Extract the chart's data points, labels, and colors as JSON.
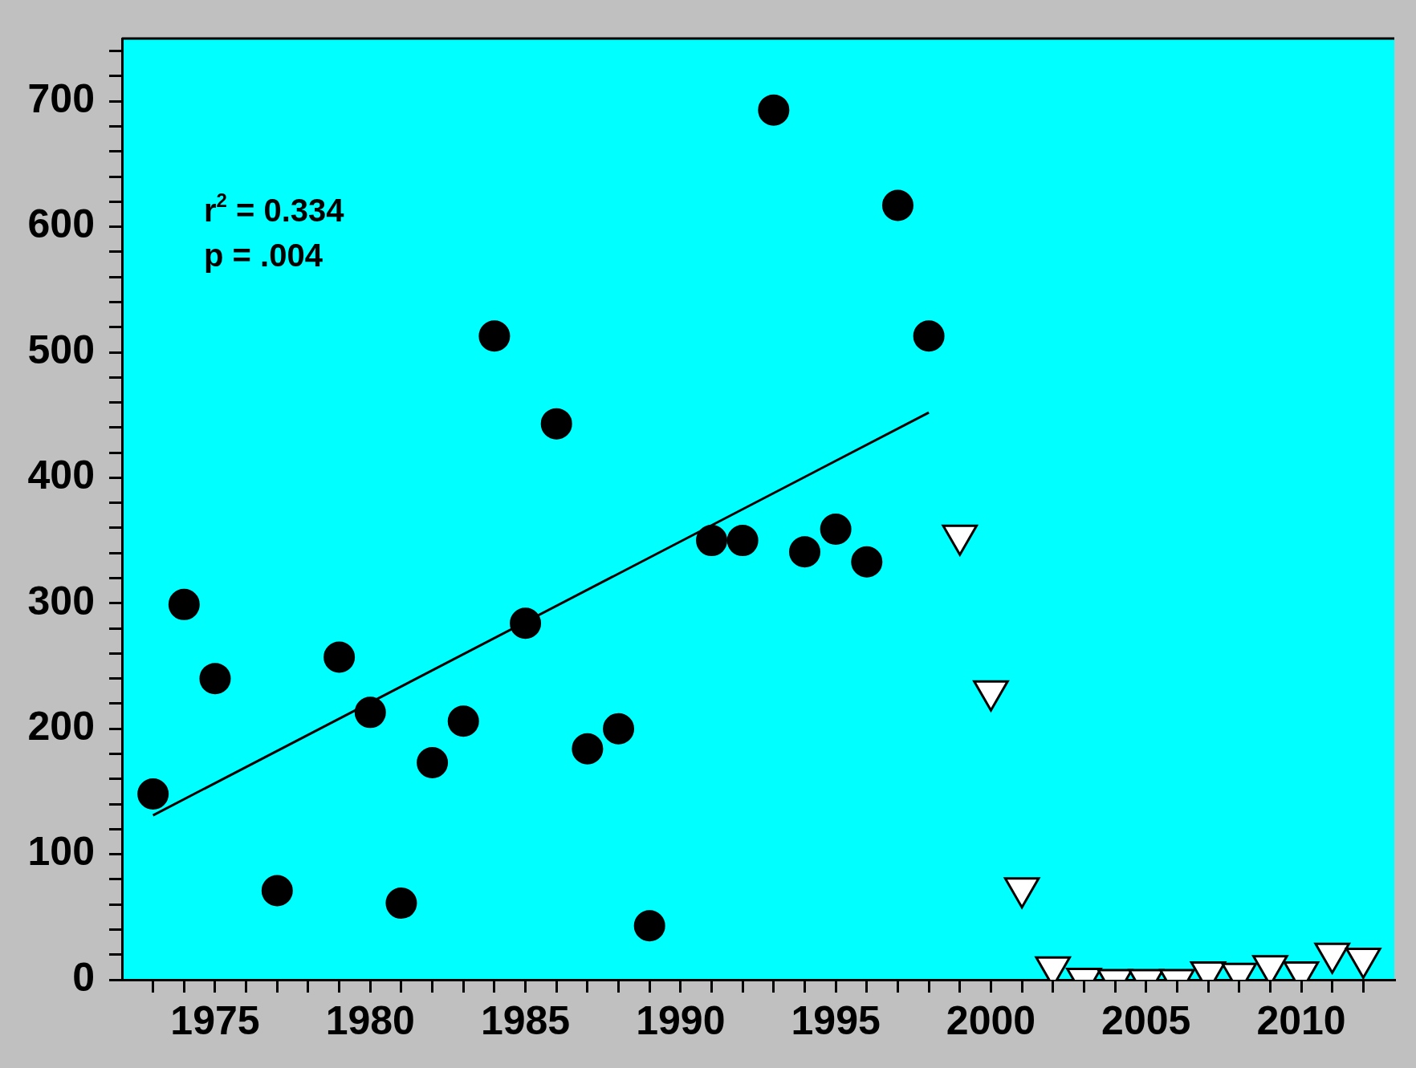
{
  "chart_data": {
    "type": "scatter",
    "annotations": [
      "r$^{2}$ = 0.334",
      "p = .004"
    ],
    "series": [
      {
        "color": "#000000",
        "marker": "circle",
        "x": [
          1973,
          1974,
          1975,
          1977,
          1979,
          1980,
          1981,
          1982,
          1983,
          1984,
          1985,
          1986,
          1987,
          1988,
          1989,
          1991,
          1992,
          1993,
          1994,
          1995,
          1996,
          1997,
          1998
        ],
        "values": [
          148,
          299,
          240,
          71,
          257,
          213,
          61,
          173,
          206,
          513,
          284,
          443,
          184,
          200,
          43,
          350,
          350,
          693,
          341,
          359,
          333,
          617,
          513
        ]
      },
      {
        "color": "#ffffff",
        "marker": "triangle",
        "x": [
          1999,
          2000,
          2001,
          2002,
          2003,
          2004,
          2005,
          2006,
          2007,
          2008,
          2009,
          2010,
          2011,
          2012
        ],
        "values": [
          354,
          230,
          73,
          10,
          1,
          0,
          0,
          0,
          6,
          5,
          11,
          6,
          21,
          17
        ]
      },
      {
        "type": "line",
        "color": "#000000",
        "marker": "none",
        "x": [
          1973,
          1998
        ],
        "values": [
          131,
          452
        ]
      }
    ],
    "xlim": [
      1972,
      2013
    ],
    "xticks": [
      {
        "value": 1973,
        "label": null
      },
      {
        "value": 1974,
        "label": null
      },
      1975,
      {
        "value": 1976,
        "label": null
      },
      {
        "value": 1977,
        "label": null
      },
      {
        "value": 1978,
        "label": null
      },
      {
        "value": 1979,
        "label": null
      },
      1980,
      {
        "value": 1981,
        "label": null
      },
      {
        "value": 1982,
        "label": null
      },
      {
        "value": 1983,
        "label": null
      },
      {
        "value": 1984,
        "label": null
      },
      1985,
      {
        "value": 1986,
        "label": null
      },
      {
        "value": 1987,
        "label": null
      },
      {
        "value": 1988,
        "label": null
      },
      {
        "value": 1989,
        "label": null
      },
      1990,
      {
        "value": 1991,
        "label": null
      },
      {
        "value": 1992,
        "label": null
      },
      {
        "value": 1993,
        "label": null
      },
      {
        "value": 1994,
        "label": null
      },
      1995,
      {
        "value": 1996,
        "label": null
      },
      {
        "value": 1997,
        "label": null
      },
      {
        "value": 1998,
        "label": null
      },
      {
        "value": 1999,
        "label": null
      },
      2000,
      {
        "value": 2001,
        "label": null
      },
      {
        "value": 2002,
        "label": null
      },
      {
        "value": 2003,
        "label": null
      },
      {
        "value": 2004,
        "label": null
      },
      2005,
      {
        "value": 2006,
        "label": null
      },
      {
        "value": 2007,
        "label": null
      },
      {
        "value": 2008,
        "label": null
      },
      {
        "value": 2009,
        "label": null
      },
      2010,
      {
        "value": 2011,
        "label": null
      },
      {
        "value": 2012,
        "label": null
      }
    ],
    "ylim": [
      0,
      750
    ],
    "yticks": [
      0,
      {
        "value": 20,
        "label": null
      },
      {
        "value": 40,
        "label": null
      },
      {
        "value": 60,
        "label": null
      },
      {
        "value": 80,
        "label": null
      },
      100,
      {
        "value": 120,
        "label": null
      },
      {
        "value": 140,
        "label": null
      },
      {
        "value": 160,
        "label": null
      },
      {
        "value": 180,
        "label": null
      },
      200,
      {
        "value": 220,
        "label": null
      },
      {
        "value": 240,
        "label": null
      },
      {
        "value": 260,
        "label": null
      },
      {
        "value": 280,
        "label": null
      },
      300,
      {
        "value": 320,
        "label": null
      },
      {
        "value": 340,
        "label": null
      },
      {
        "value": 360,
        "label": null
      },
      {
        "value": 380,
        "label": null
      },
      400,
      {
        "value": 420,
        "label": null
      },
      {
        "value": 440,
        "label": null
      },
      {
        "value": 460,
        "label": null
      },
      {
        "value": 480,
        "label": null
      },
      500,
      {
        "value": 520,
        "label": null
      },
      {
        "value": 540,
        "label": null
      },
      {
        "value": 560,
        "label": null
      },
      {
        "value": 580,
        "label": null
      },
      600,
      {
        "value": 620,
        "label": null
      },
      {
        "value": 640,
        "label": null
      },
      {
        "value": 660,
        "label": null
      },
      {
        "value": 680,
        "label": null
      },
      700,
      {
        "value": 720,
        "label": null
      },
      {
        "value": 740,
        "label": null
      }
    ],
    "grid": false,
    "legend": false
  }
}
